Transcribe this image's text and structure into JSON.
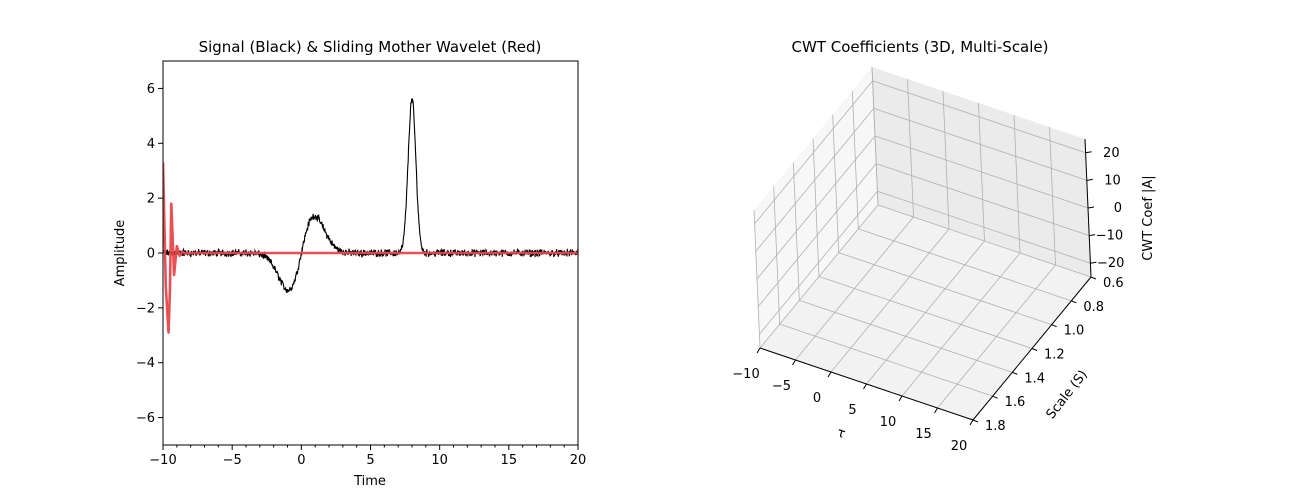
{
  "chart_data": [
    {
      "type": "line",
      "title": "Signal (Black) & Sliding Mother Wavelet (Red)",
      "xlabel": "Time",
      "ylabel": "Amplitude",
      "xlim": [
        -10,
        20
      ],
      "ylim": [
        -7,
        7
      ],
      "x_ticks": [
        -10,
        -5,
        0,
        5,
        10,
        15,
        20
      ],
      "x_tick_labels": [
        "−10",
        "−5",
        "0",
        "5",
        "10",
        "15",
        "20"
      ],
      "y_ticks": [
        -6,
        -4,
        -2,
        0,
        2,
        4,
        6
      ],
      "y_tick_labels": [
        "−6",
        "−4",
        "−2",
        "0",
        "2",
        "4",
        "6"
      ],
      "grid": false,
      "colors": {
        "signal": "#000000",
        "wavelet": "#e8474a"
      },
      "signal_features": [
        {
          "shape": "gaussian",
          "center": 8.0,
          "width": 0.28,
          "amplitude": 5.6
        },
        {
          "shape": "dipole",
          "center": 0.0,
          "width": 0.95,
          "amplitude": 1.35
        }
      ],
      "noise_amplitude": 0.1,
      "series": [
        {
          "x": [
            -10,
            -9.8,
            -9.6,
            -9.5,
            -9.4,
            -9.2,
            -9.0,
            -8.8,
            -8.6,
            -8.4,
            -8.2,
            -8.0,
            -7.0,
            -5.0,
            0,
            5,
            10,
            15,
            20
          ],
          "y": [
            3.3,
            -1.2,
            -2.9,
            -1.4,
            1.8,
            -0.8,
            0.25,
            -0.1,
            0.05,
            -0.02,
            0.0,
            0.0,
            0.0,
            0.0,
            0.0,
            0.0,
            0.0,
            0.0,
            0.0
          ]
        }
      ]
    },
    {
      "type": "surface3d",
      "title": "CWT Coefficients (3D, Multi-Scale)",
      "xlabel": "τ",
      "ylabel": "Scale (S)",
      "zlabel": "CWT Coef |A|",
      "xlim": [
        -10,
        20
      ],
      "ylim": [
        0.6,
        1.8
      ],
      "zlim": [
        -25,
        25
      ],
      "x_ticks": [
        -10,
        -5,
        0,
        5,
        10,
        15,
        20
      ],
      "x_tick_labels": [
        "−10",
        "−5",
        "0",
        "5",
        "10",
        "15",
        "20"
      ],
      "y_ticks": [
        0.6,
        0.8,
        1.0,
        1.2,
        1.4,
        1.6,
        1.8
      ],
      "y_tick_labels": [
        "0.6",
        "0.8",
        "1.0",
        "1.2",
        "1.4",
        "1.6",
        "1.8"
      ],
      "z_ticks": [
        -20,
        -10,
        0,
        10,
        20
      ],
      "z_tick_labels": [
        "−20",
        "−10",
        "0",
        "10",
        "20"
      ],
      "grid": true
    }
  ]
}
